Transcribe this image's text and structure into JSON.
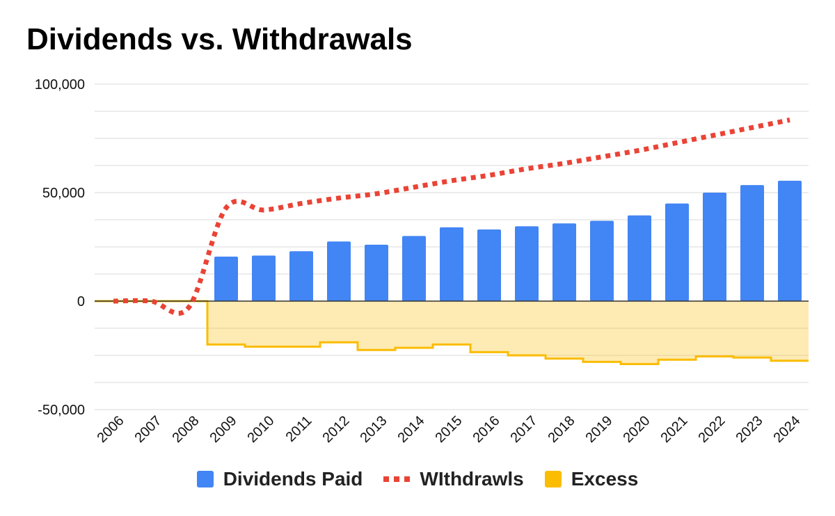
{
  "chart_data": {
    "type": "bar",
    "title": "Dividends vs. Withdrawals",
    "categories": [
      "2006",
      "2007",
      "2008",
      "2009",
      "2010",
      "2011",
      "2012",
      "2013",
      "2014",
      "2015",
      "2016",
      "2017",
      "2018",
      "2019",
      "2020",
      "2021",
      "2022",
      "2023",
      "2024"
    ],
    "series": [
      {
        "name": "Dividends Paid",
        "type": "bar",
        "color": "#4285f4",
        "values": [
          0,
          0,
          0,
          20500,
          21000,
          23000,
          27500,
          26000,
          30000,
          34000,
          33000,
          34500,
          35800,
          37000,
          39500,
          45000,
          50000,
          53500,
          55500
        ]
      },
      {
        "name": "WIthdrawls",
        "type": "line",
        "style": "dotted",
        "color": "#ea4335",
        "values": [
          0,
          0,
          -3000,
          43000,
          42000,
          45000,
          47500,
          49500,
          52500,
          55500,
          58000,
          61000,
          63500,
          66500,
          69500,
          73000,
          76500,
          80000,
          83500
        ]
      },
      {
        "name": "Excess",
        "type": "stepped-area",
        "color": "#fbbc04",
        "values": [
          0,
          0,
          0,
          -20000,
          -21000,
          -21000,
          -19000,
          -22500,
          -21500,
          -20000,
          -23500,
          -25000,
          -26500,
          -28000,
          -29000,
          -27000,
          -25500,
          -26000,
          -27500
        ]
      }
    ],
    "y_ticks": [
      100000,
      50000,
      0,
      -50000
    ],
    "y_tick_labels": [
      "100,000",
      "50,000",
      "0",
      "-50,000"
    ],
    "ylim": [
      -50000,
      100000
    ],
    "grid": true,
    "legend_position": "bottom"
  }
}
